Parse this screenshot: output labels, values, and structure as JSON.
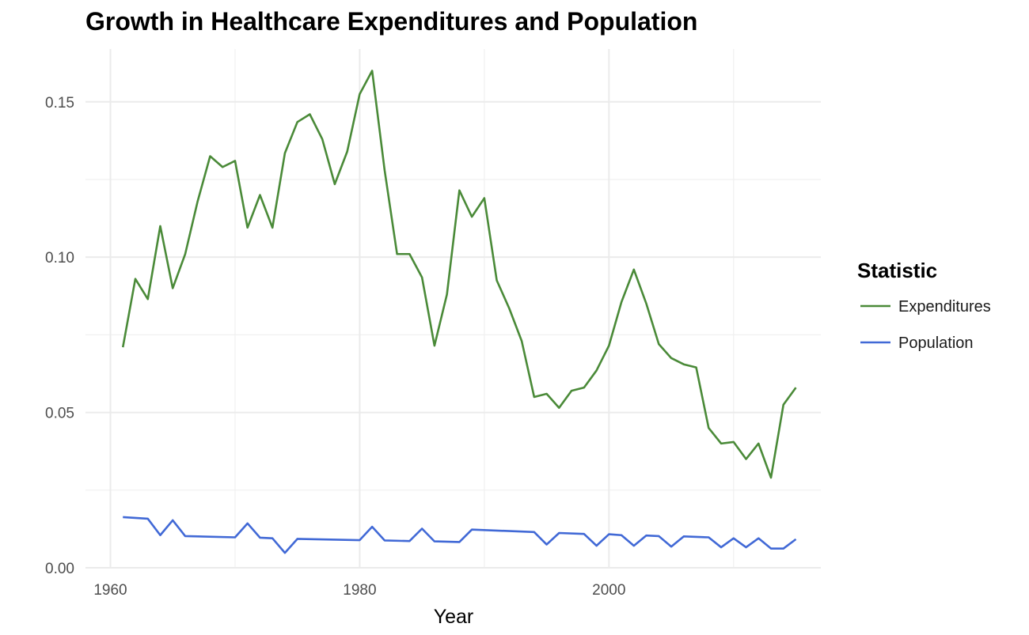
{
  "chart_data": {
    "type": "line",
    "title": "Growth in Healthcare Expenditures and Population",
    "xlabel": "Year",
    "ylabel": "",
    "xlim": [
      1958,
      2017
    ],
    "ylim": [
      0,
      0.167
    ],
    "x_ticks": [
      1960,
      1980,
      2000
    ],
    "x_tick_labels": [
      "1960",
      "1980",
      "2000"
    ],
    "x_minor_ticks": [
      1970,
      1990,
      2010
    ],
    "y_ticks": [
      0,
      0.05,
      0.1,
      0.15
    ],
    "y_tick_labels": [
      "0.00",
      "0.05",
      "0.10",
      "0.15"
    ],
    "y_minor_ticks": [
      0.025,
      0.075,
      0.125
    ],
    "grid": true,
    "legend": {
      "title": "Statistic",
      "position": "right"
    },
    "series": [
      {
        "name": "Expenditures",
        "color": "#4a8a38",
        "x": [
          1961,
          1962,
          1963,
          1964,
          1965,
          1966,
          1967,
          1968,
          1969,
          1970,
          1971,
          1972,
          1973,
          1974,
          1975,
          1976,
          1977,
          1978,
          1979,
          1980,
          1981,
          1982,
          1983,
          1984,
          1985,
          1986,
          1987,
          1988,
          1989,
          1990,
          1991,
          1992,
          1993,
          1994,
          1995,
          1996,
          1997,
          1998,
          1999,
          2000,
          2001,
          2002,
          2003,
          2004,
          2005,
          2006,
          2007,
          2008,
          2009,
          2010,
          2011,
          2012,
          2013,
          2014,
          2015
        ],
        "values": [
          0.071,
          0.093,
          0.0865,
          0.11,
          0.09,
          0.101,
          0.118,
          0.1325,
          0.129,
          0.131,
          0.1095,
          0.12,
          0.1095,
          0.1335,
          0.1435,
          0.146,
          0.138,
          0.1235,
          0.134,
          0.1525,
          0.16,
          0.128,
          0.101,
          0.101,
          0.0935,
          0.0715,
          0.088,
          0.1215,
          0.113,
          0.119,
          0.0925,
          0.0835,
          0.073,
          0.055,
          0.056,
          0.0515,
          0.057,
          0.058,
          0.0635,
          0.0715,
          0.0855,
          0.096,
          0.085,
          0.072,
          0.0675,
          0.0655,
          0.0645,
          0.045,
          0.04,
          0.0405,
          0.035,
          0.04,
          0.029,
          0.0525,
          0.058
        ]
      },
      {
        "name": "Population",
        "color": "#4169d6",
        "x": [
          1961,
          1963,
          1964,
          1965,
          1966,
          1970,
          1971,
          1972,
          1973,
          1974,
          1975,
          1980,
          1981,
          1982,
          1984,
          1985,
          1986,
          1988,
          1989,
          1994,
          1995,
          1996,
          1998,
          1999,
          2000,
          2001,
          2002,
          2003,
          2004,
          2005,
          2006,
          2008,
          2009,
          2010,
          2011,
          2012,
          2013,
          2014,
          2015
        ],
        "values": [
          0.0163,
          0.0158,
          0.0105,
          0.0153,
          0.0102,
          0.0098,
          0.0143,
          0.0097,
          0.0095,
          0.0048,
          0.0093,
          0.0089,
          0.0132,
          0.0088,
          0.0086,
          0.0126,
          0.0085,
          0.0083,
          0.0123,
          0.0115,
          0.0075,
          0.0112,
          0.0109,
          0.0071,
          0.0108,
          0.0105,
          0.0071,
          0.0104,
          0.0102,
          0.0068,
          0.0101,
          0.0098,
          0.0066,
          0.0095,
          0.0066,
          0.0095,
          0.0062,
          0.0062,
          0.0092
        ]
      }
    ]
  }
}
